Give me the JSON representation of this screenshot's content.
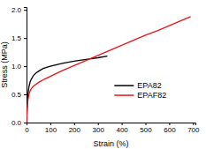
{
  "chart_data": {
    "type": "line",
    "x_label": "Strain (%)",
    "y_label": "Stress (MPa)",
    "xlim": [
      0,
      710
    ],
    "ylim": [
      0,
      2.05
    ],
    "xticks": [
      0,
      100,
      200,
      300,
      400,
      500,
      600,
      700
    ],
    "yticks": [
      {
        "value": 0,
        "label": "0.0"
      },
      {
        "value": 0.5,
        "label": "0.5"
      },
      {
        "value": 1,
        "label": "1.0"
      },
      {
        "value": 1.5,
        "label": "1.5"
      },
      {
        "value": 2,
        "label": "2.0"
      }
    ],
    "legend": "right",
    "grid": false,
    "series": [
      {
        "name": "EPA82",
        "color": "#000000",
        "x": [
          0,
          3,
          6,
          10,
          15,
          20,
          30,
          40,
          50,
          70,
          100,
          150,
          200,
          250,
          300,
          340
        ],
        "values": [
          0,
          0.3,
          0.5,
          0.63,
          0.72,
          0.77,
          0.84,
          0.88,
          0.91,
          0.96,
          1.0,
          1.05,
          1.09,
          1.12,
          1.15,
          1.18
        ]
      },
      {
        "name": "EPAF82",
        "color": "#e8161b",
        "x": [
          0,
          3,
          6,
          10,
          15,
          20,
          30,
          50,
          75,
          100,
          150,
          200,
          250,
          300,
          350,
          400,
          450,
          500,
          550,
          600,
          650,
          690
        ],
        "values": [
          0,
          0.25,
          0.4,
          0.5,
          0.56,
          0.6,
          0.65,
          0.71,
          0.77,
          0.82,
          0.92,
          1.01,
          1.1,
          1.19,
          1.28,
          1.37,
          1.46,
          1.55,
          1.63,
          1.72,
          1.81,
          1.88
        ]
      }
    ]
  }
}
